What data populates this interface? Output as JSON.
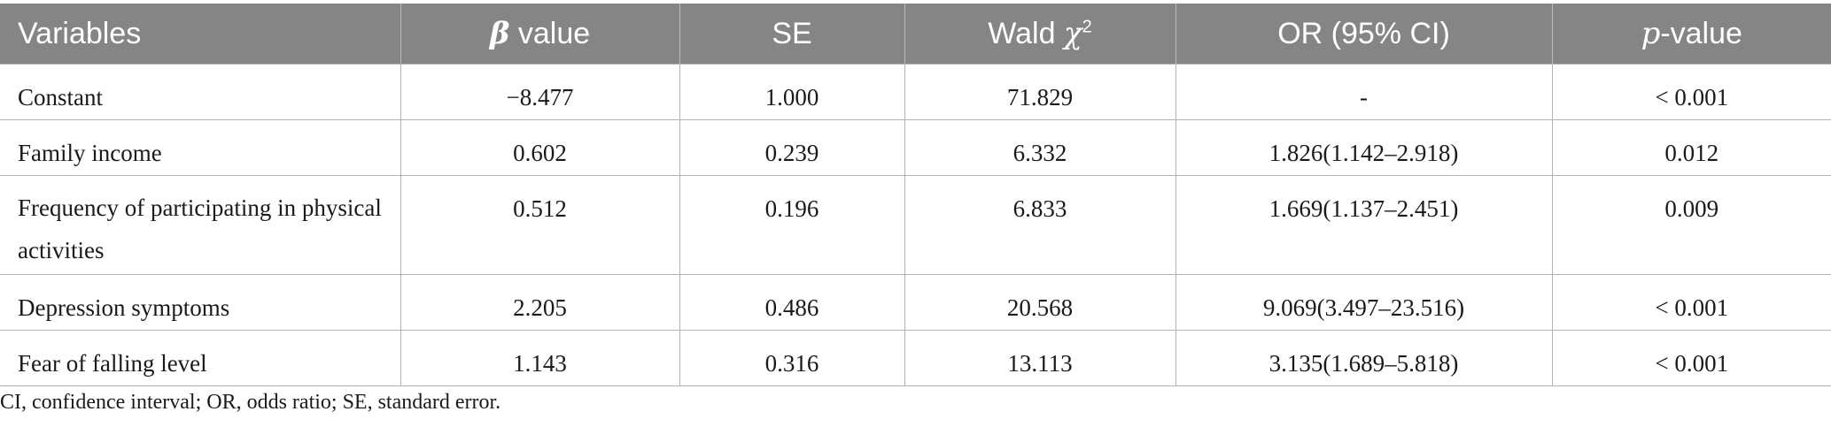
{
  "table": {
    "headers": {
      "variables": "Variables",
      "beta_symbol": "β",
      "beta_rest": " value",
      "se": "SE",
      "wald_text": "Wald ",
      "wald_symbol": "χ",
      "wald_sup": "2",
      "or": "OR (95% CI)",
      "p_symbol": "p",
      "p_rest": "-value"
    },
    "rows": [
      {
        "variable": "Constant",
        "beta": "−8.477",
        "se": "1.000",
        "wald": "71.829",
        "or": "-",
        "p": "< 0.001"
      },
      {
        "variable": "Family income",
        "beta": "0.602",
        "se": "0.239",
        "wald": "6.332",
        "or": "1.826(1.142–2.918)",
        "p": "0.012"
      },
      {
        "variable": "Frequency of participating in physical activities",
        "beta": "0.512",
        "se": "0.196",
        "wald": "6.833",
        "or": "1.669(1.137–2.451)",
        "p": "0.009"
      },
      {
        "variable": "Depression symptoms",
        "beta": "2.205",
        "se": "0.486",
        "wald": "20.568",
        "or": "9.069(3.497–23.516)",
        "p": "< 0.001"
      },
      {
        "variable": "Fear of falling level",
        "beta": "1.143",
        "se": "0.316",
        "wald": "13.113",
        "or": "3.135(1.689–5.818)",
        "p": "< 0.001"
      }
    ]
  },
  "footnote": "CI, confidence interval; OR, odds ratio; SE, standard error."
}
